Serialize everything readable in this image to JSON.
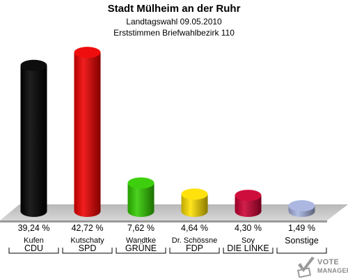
{
  "chart_data": {
    "type": "bar",
    "title": "Stadt Mülheim an der Ruhr",
    "subtitle_lines": [
      "Landtagswahl 09.05.2010",
      "Erststimmen Briefwahlbezirk 110"
    ],
    "categories": [
      "CDU",
      "SPD",
      "GRÜNE",
      "FDP",
      "DIE LINKE",
      "Sonstige"
    ],
    "candidates": [
      "Kufen",
      "Kutschaty",
      "Wandtke",
      "Dr. Schössne",
      "Soy",
      ""
    ],
    "values": [
      39.24,
      42.72,
      7.62,
      4.64,
      4.3,
      1.49
    ],
    "value_labels": [
      "39,24 %",
      "42,72 %",
      "7,62 %",
      "4,64 %",
      "4,30 %",
      "1,49 %"
    ],
    "colors": [
      "#000000",
      "#ee0000",
      "#33cc00",
      "#ffe000",
      "#cc0033",
      "#a8b4e0"
    ],
    "ylim": [
      0,
      45
    ],
    "grid": false,
    "legend": "none",
    "xlabel": "",
    "ylabel": ""
  },
  "logo": {
    "line1": "VOTE",
    "line2": "MANAGER"
  }
}
